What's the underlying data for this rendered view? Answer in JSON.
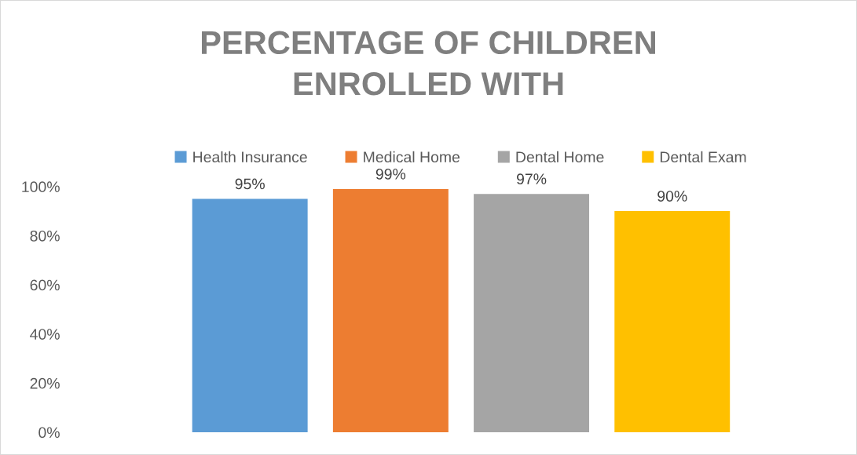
{
  "chart_data": {
    "type": "bar",
    "title": "PERCENTAGE OF CHILDREN\nENROLLED WITH",
    "categories": [
      null
    ],
    "series": [
      {
        "name": "Health Insurance",
        "color": "#5b9bd5",
        "values": [
          95
        ],
        "value_labels": [
          "95%"
        ]
      },
      {
        "name": "Medical Home",
        "color": "#ed7d31",
        "values": [
          99
        ],
        "value_labels": [
          "99%"
        ]
      },
      {
        "name": "Dental Home",
        "color": "#a5a5a5",
        "values": [
          97
        ],
        "value_labels": [
          "97%"
        ]
      },
      {
        "name": "Dental Exam",
        "color": "#ffc000",
        "values": [
          90
        ],
        "value_labels": [
          "90%"
        ]
      }
    ],
    "ylim": [
      0,
      100
    ],
    "yticks": [
      {
        "value": 0,
        "label": "0%"
      },
      {
        "value": 20,
        "label": "20%"
      },
      {
        "value": 40,
        "label": "40%"
      },
      {
        "value": 60,
        "label": "60%"
      },
      {
        "value": 80,
        "label": "80%"
      },
      {
        "value": 100,
        "label": "100%"
      }
    ],
    "grid": false,
    "legend": "top"
  }
}
